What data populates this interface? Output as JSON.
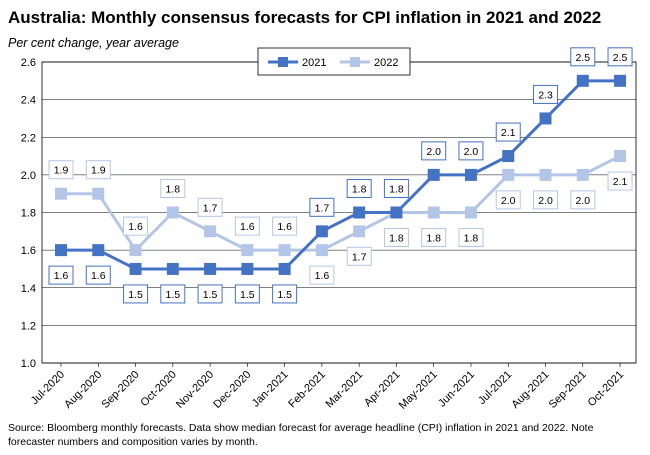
{
  "chart_data": {
    "type": "line",
    "title": "Australia: Monthly consensus forecasts for CPI inflation in 2021 and 2022",
    "subtitle": "Per cent change, year average",
    "categories": [
      "Jul-2020",
      "Aug-2020",
      "Sep-2020",
      "Oct-2020",
      "Nov-2020",
      "Dec-2020",
      "Jan-2021",
      "Feb-2021",
      "Mar-2021",
      "Apr-2021",
      "May-2021",
      "Jun-2021",
      "Jul-2021",
      "Aug-2021",
      "Sep-2021",
      "Oct-2021"
    ],
    "series": [
      {
        "name": "2021",
        "color": "#4472c4",
        "label_position": [
          1,
          1,
          1,
          1,
          1,
          1,
          1,
          0,
          0,
          0,
          0,
          0,
          0,
          0,
          0,
          0
        ],
        "values": [
          1.6,
          1.6,
          1.5,
          1.5,
          1.5,
          1.5,
          1.5,
          1.7,
          1.8,
          1.8,
          2.0,
          2.0,
          2.1,
          2.3,
          2.5,
          2.5
        ]
      },
      {
        "name": "2022",
        "color": "#b4c6e7",
        "label_position": [
          0,
          0,
          0,
          0,
          0,
          0,
          0,
          1,
          1,
          1,
          1,
          1,
          1,
          1,
          1,
          1
        ],
        "values": [
          1.9,
          1.9,
          1.6,
          1.8,
          1.7,
          1.6,
          1.6,
          1.6,
          1.7,
          1.8,
          1.8,
          1.8,
          2.0,
          2.0,
          2.0,
          2.1
        ]
      }
    ],
    "data_labels": [
      [
        "1.6",
        "1.6",
        "1.5",
        "1.5",
        "1.5",
        "1.5",
        "1.5",
        "1.7",
        "1.8",
        "1.8",
        "2.0",
        "2.0",
        "2.1",
        "2.3",
        "2.5",
        "2.5"
      ],
      [
        "1.9",
        "1.9",
        "1.6",
        "1.8",
        "1.7",
        "1.6",
        "1.6",
        "1.6",
        "1.7",
        "1.8",
        "1.8",
        "1.8",
        "2.0",
        "2.0",
        "2.0",
        "2.1"
      ]
    ],
    "ylim": [
      1.0,
      2.6
    ],
    "yticks": [
      "1.0",
      "1.2",
      "1.4",
      "1.6",
      "1.8",
      "2.0",
      "2.2",
      "2.4",
      "2.6"
    ],
    "grid": true,
    "legend_placement": "top-center"
  },
  "source": "Source: Bloomberg monthly forecasts.  Data show median forecast for average headline (CPI) inflation in 2021 and 2022.  Note forecaster numbers and composition varies by month."
}
